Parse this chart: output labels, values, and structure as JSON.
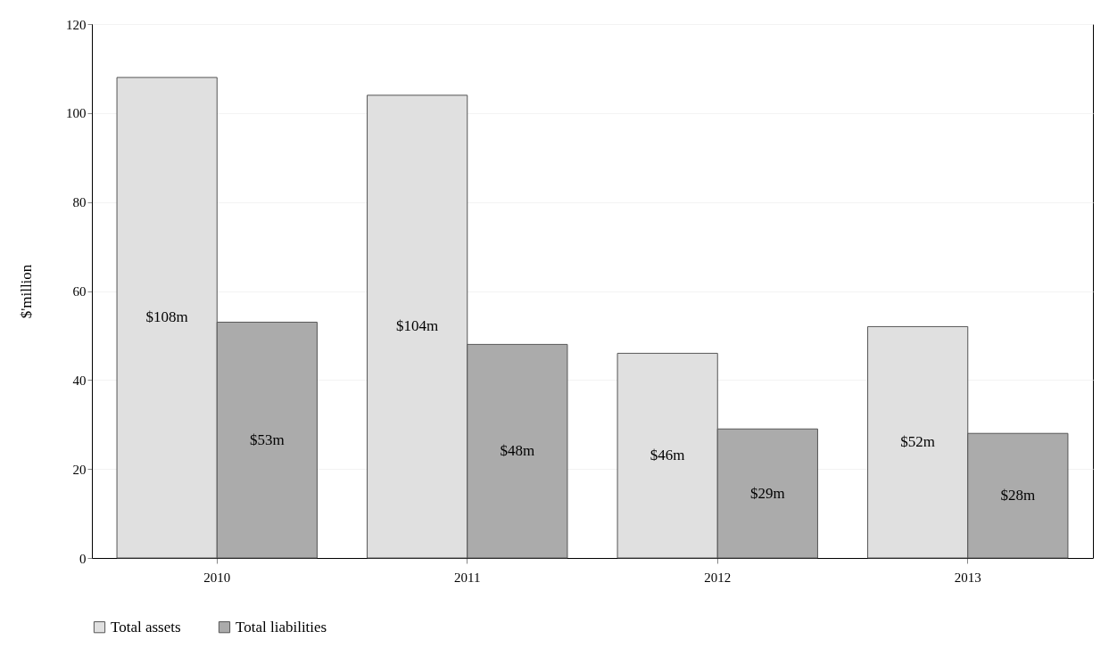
{
  "chart_data": {
    "type": "bar",
    "ylabel": "$'million",
    "categories": [
      "2010",
      "2011",
      "2012",
      "2013"
    ],
    "series": [
      {
        "name": "Total assets",
        "color": "#e0e0e0",
        "values": [
          108,
          104,
          46,
          52
        ],
        "value_labels": [
          "$108m",
          "$104m",
          "$46m",
          "$52m"
        ]
      },
      {
        "name": "Total liabilities",
        "color": "#ababab",
        "values": [
          53,
          48,
          29,
          28
        ],
        "value_labels": [
          "$53m",
          "$48m",
          "$29m",
          "$28m"
        ]
      }
    ],
    "ylim": [
      0,
      120
    ],
    "yticks": [
      0,
      20,
      40,
      60,
      80,
      100,
      120
    ],
    "grid": "y",
    "legend": "bottom"
  }
}
